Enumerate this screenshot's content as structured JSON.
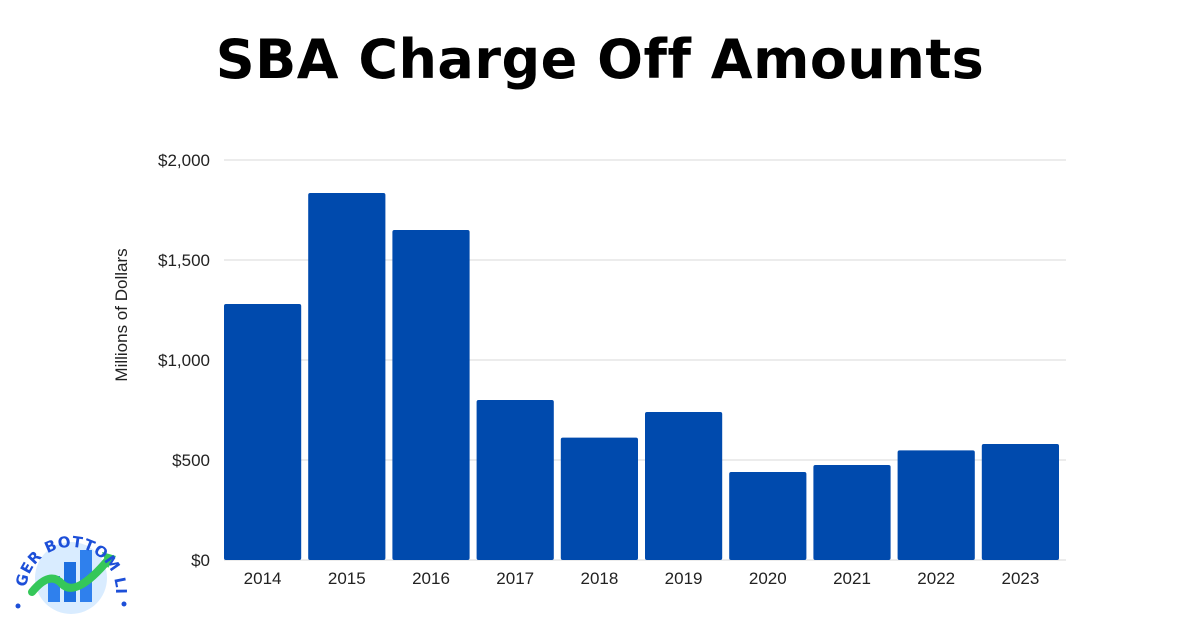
{
  "chart_data": {
    "type": "bar",
    "title": "SBA Charge Off Amounts",
    "xlabel": "",
    "ylabel": "Millions of Dollars",
    "categories": [
      "2014",
      "2015",
      "2016",
      "2017",
      "2018",
      "2019",
      "2020",
      "2021",
      "2022",
      "2023"
    ],
    "values": [
      1280,
      1835,
      1650,
      800,
      612,
      740,
      440,
      475,
      548,
      580
    ],
    "ylim": [
      0,
      2000
    ],
    "yticks": [
      0,
      500,
      1000,
      1500,
      2000
    ],
    "ytick_labels": [
      "$0",
      "$500",
      "$1,000",
      "$1,500",
      "$2,000"
    ],
    "bar_color": "#004aad",
    "grid": true,
    "legend": "none"
  },
  "logo": {
    "text": "BIGGER BOTTOM LINE",
    "color": "#1d4fd8"
  }
}
